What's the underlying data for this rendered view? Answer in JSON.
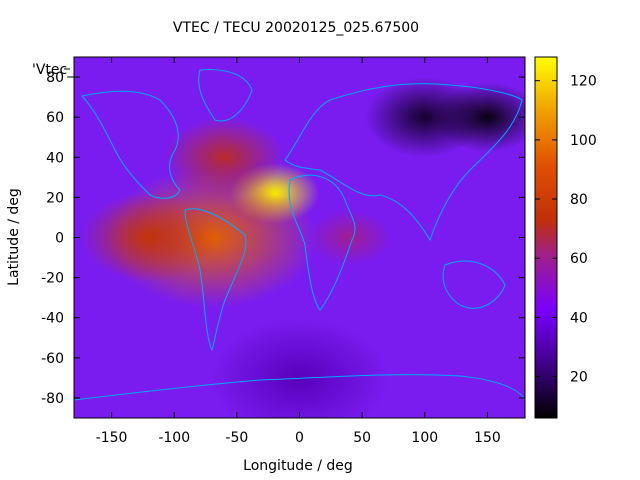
{
  "chart_data": {
    "type": "heatmap",
    "title": "VTEC / TECU 20020125_025.67500",
    "xlabel": "Longitude / deg",
    "ylabel": "Latitude / deg",
    "series_key_label": "'Vtec_",
    "xlim": [
      -180,
      180
    ],
    "ylim": [
      -90,
      90
    ],
    "xticks": [
      -150,
      -100,
      -50,
      0,
      50,
      100,
      150
    ],
    "yticks": [
      -80,
      -60,
      -40,
      -20,
      0,
      20,
      40,
      60,
      80
    ],
    "colorbar": {
      "range": [
        6,
        128
      ],
      "ticks": [
        20,
        40,
        60,
        80,
        100,
        120
      ],
      "palette": "black-purple-red-orange-yellow"
    },
    "coastline_color": "#00aaff",
    "features": [
      {
        "lon": -20,
        "lat": 22,
        "vtec": 128
      },
      {
        "lon": -70,
        "lat": 0,
        "vtec": 95
      },
      {
        "lon": -120,
        "lat": 0,
        "vtec": 75
      },
      {
        "lon": -60,
        "lat": 40,
        "vtec": 70
      },
      {
        "lon": 40,
        "lat": 0,
        "vtec": 60
      },
      {
        "lon": 100,
        "lat": 60,
        "vtec": 12
      },
      {
        "lon": 150,
        "lat": 60,
        "vtec": 8
      },
      {
        "lon": 0,
        "lat": -70,
        "vtec": 32
      }
    ]
  }
}
